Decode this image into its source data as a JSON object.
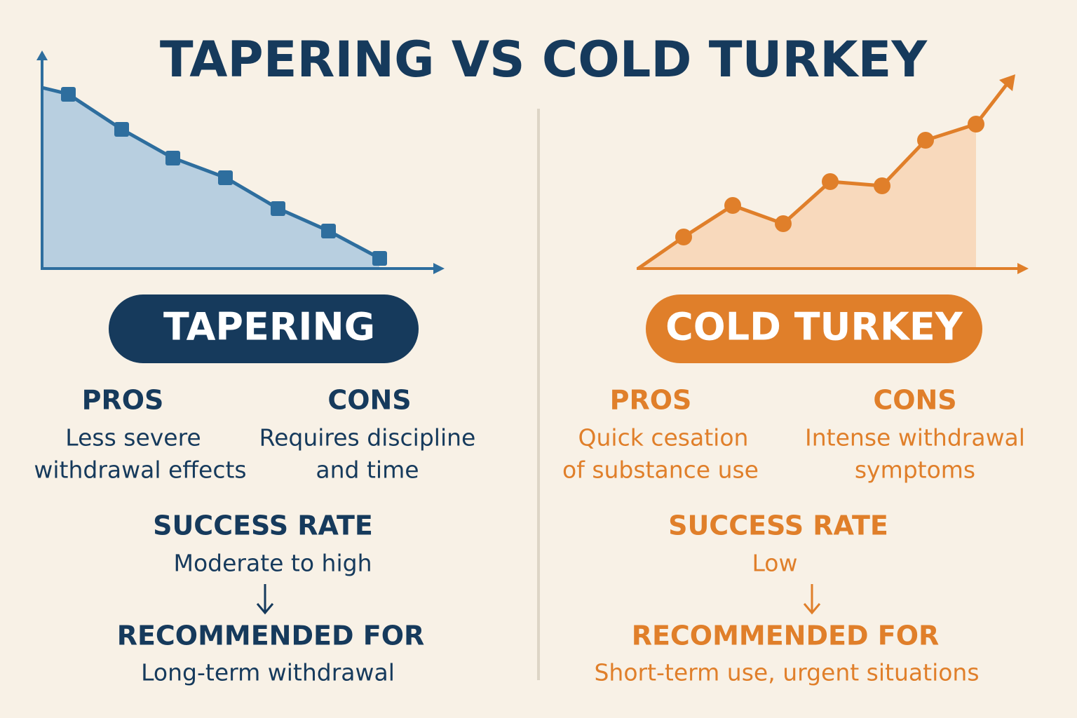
{
  "title": "TAPERING VS COLD TURKEY",
  "panels": [
    {
      "badge": "TAPERING",
      "pros": {
        "heading": "PROS",
        "lines": [
          "Less severe",
          "withdrawal effects"
        ]
      },
      "cons": {
        "heading": "CONS",
        "lines": [
          "Requires discipline",
          "and time"
        ]
      },
      "success": {
        "heading": "SUCCESS RATE",
        "text": "Moderate to high"
      },
      "recommended": {
        "heading": "RECOMMENDED FOR",
        "text": "Long-term withdrawal"
      }
    },
    {
      "badge": "COLD TURKEY",
      "pros": {
        "heading": "PROS",
        "lines": [
          "Quick cesation",
          "of substance use"
        ]
      },
      "cons": {
        "heading": "CONS",
        "lines": [
          "Intense withdrawal",
          "symptoms"
        ]
      },
      "success": {
        "heading": "SUCCESS RATE",
        "text": "Low"
      },
      "recommended": {
        "heading": "RECOMMENDED FOR",
        "text": "Short-term use, urgent situations"
      }
    }
  ]
}
